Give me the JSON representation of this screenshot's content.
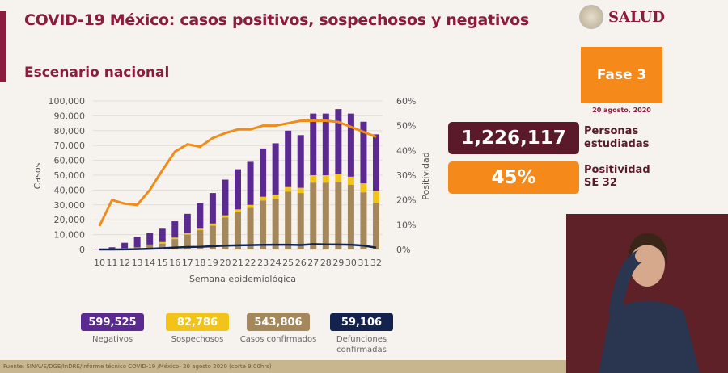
{
  "header": {
    "title": "COVID-19 México: casos positivos, sospechosos y negativos",
    "subtitle": "Escenario nacional",
    "logo_text": "SALUD"
  },
  "phase": {
    "label": "Fase 3",
    "date": "20 agosto, 2020"
  },
  "kpis": [
    {
      "value": "1,226,117",
      "label1": "Personas",
      "label2": "estudiadas",
      "color": "#5a1a2a"
    },
    {
      "value": "45%",
      "label1": "Positividad",
      "label2": "SE 32",
      "color": "#f5891a"
    }
  ],
  "legend": [
    {
      "value": "599,525",
      "label": "Negativos",
      "color": "#5b2a91"
    },
    {
      "value": "82,786",
      "label": "Sospechosos",
      "color": "#f2c318"
    },
    {
      "value": "543,806",
      "label": "Casos confirmados",
      "color": "#a4875a"
    },
    {
      "value": "59,106",
      "label": "Defunciones confirmadas",
      "color": "#14234e"
    }
  ],
  "footer": "Fuente: SINAVE/DGE/InDRE/Informe técnico COVID-19 /México- 20 agosto 2020 (corte 9:00hrs)",
  "chart_data": {
    "type": "bar",
    "stacked": true,
    "xlabel": "Semana epidemiológica",
    "ylabel": "Casos",
    "y2label": "Positividad",
    "categories": [
      "10",
      "11",
      "12",
      "13",
      "14",
      "15",
      "16",
      "17",
      "18",
      "19",
      "20",
      "21",
      "22",
      "23",
      "24",
      "25",
      "26",
      "27",
      "28",
      "29",
      "30",
      "31",
      "32"
    ],
    "ylim": [
      0,
      100000
    ],
    "yticks": [
      "0",
      "10,000",
      "20,000",
      "30,000",
      "40,000",
      "50,000",
      "60,000",
      "70,000",
      "80,000",
      "90,000",
      "100,000"
    ],
    "y2lim": [
      0,
      60
    ],
    "y2ticks": [
      "0%",
      "10%",
      "20%",
      "30%",
      "40%",
      "50%",
      "60%"
    ],
    "grid": true,
    "series": [
      {
        "name": "Casos confirmados",
        "kind": "bar",
        "color": "#a4875a",
        "values": [
          0,
          300,
          1000,
          1500,
          3000,
          4000,
          7000,
          10000,
          13000,
          16000,
          21500,
          25000,
          28000,
          33000,
          34000,
          39000,
          38000,
          45000,
          45000,
          45500,
          43500,
          38500,
          31500
        ]
      },
      {
        "name": "Sospechosos",
        "kind": "bar",
        "color": "#f2c318",
        "values": [
          0,
          0,
          0,
          0,
          300,
          1000,
          1000,
          1000,
          1000,
          1500,
          1500,
          2000,
          2000,
          2500,
          3000,
          3000,
          3500,
          5000,
          5000,
          5500,
          5500,
          6000,
          8000
        ]
      },
      {
        "name": "Negativos",
        "kind": "bar",
        "color": "#5b2a91",
        "values": [
          500,
          1200,
          3500,
          7000,
          7700,
          9000,
          11000,
          13000,
          17000,
          20500,
          24000,
          27000,
          29000,
          32500,
          34500,
          38000,
          35500,
          41500,
          41500,
          43500,
          42500,
          41500,
          38000
        ]
      },
      {
        "name": "Defunciones confirmadas",
        "kind": "line",
        "axis": "left",
        "color": "#14234e",
        "values": [
          0,
          0,
          100,
          200,
          500,
          800,
          1300,
          1600,
          1800,
          2200,
          2600,
          2800,
          2900,
          3100,
          3200,
          3200,
          3000,
          3600,
          3400,
          3300,
          3200,
          2600,
          1200
        ]
      },
      {
        "name": "Positividad",
        "kind": "line",
        "axis": "right",
        "color": "#f08c1a",
        "values": [
          9.5,
          20,
          18.5,
          18,
          24,
          32,
          39.5,
          42.5,
          41.5,
          45,
          47,
          48.5,
          48.5,
          50,
          50,
          51,
          52,
          52,
          52,
          51.5,
          49.5,
          47.5,
          45.5
        ]
      }
    ]
  }
}
